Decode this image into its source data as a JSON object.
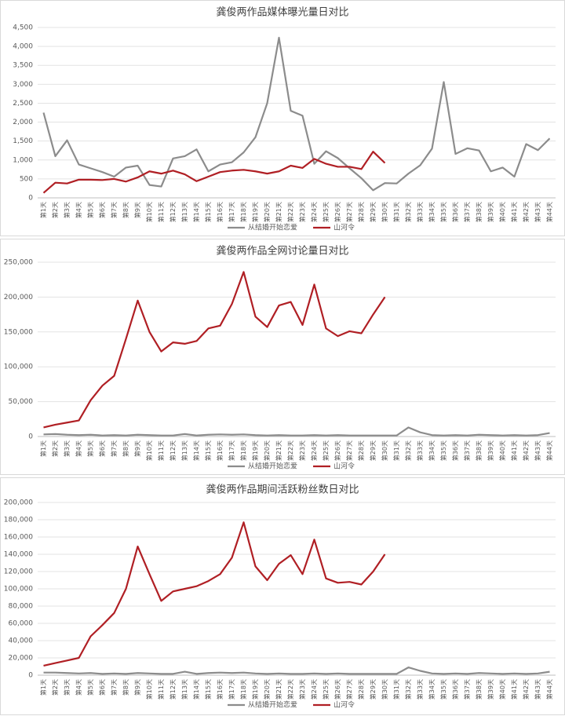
{
  "chart_data": [
    {
      "type": "line",
      "title": "龚俊两作品媒体曝光量日对比",
      "categories": [
        "第1天",
        "第2天",
        "第3天",
        "第4天",
        "第5天",
        "第6天",
        "第7天",
        "第8天",
        "第9天",
        "第10天",
        "第11天",
        "第12天",
        "第13天",
        "第14天",
        "第15天",
        "第16天",
        "第17天",
        "第18天",
        "第19天",
        "第20天",
        "第21天",
        "第22天",
        "第23天",
        "第24天",
        "第25天",
        "第26天",
        "第27天",
        "第28天",
        "第29天",
        "第30天",
        "第31天",
        "第32天",
        "第33天",
        "第34天",
        "第35天",
        "第36天",
        "第37天",
        "第38天",
        "第39天",
        "第40天",
        "第41天",
        "第42天",
        "第43天",
        "第44天"
      ],
      "series": [
        {
          "name": "从结婚开始恋爱",
          "color": "#8c8c8c",
          "values": [
            2250,
            1100,
            1520,
            880,
            780,
            680,
            560,
            800,
            850,
            340,
            300,
            1040,
            1100,
            1280,
            700,
            880,
            940,
            1200,
            1600,
            2500,
            4230,
            2300,
            2170,
            900,
            1230,
            1050,
            780,
            520,
            200,
            390,
            380,
            640,
            860,
            1300,
            3060,
            1160,
            1310,
            1250,
            700,
            800,
            560,
            1420,
            1260,
            1570
          ]
        },
        {
          "name": "山河令",
          "color": "#b01f24",
          "values": [
            130,
            400,
            380,
            480,
            480,
            470,
            500,
            430,
            540,
            700,
            640,
            720,
            620,
            440,
            560,
            680,
            720,
            740,
            700,
            640,
            700,
            850,
            790,
            1030,
            900,
            820,
            820,
            760,
            1220,
            920,
            null,
            null,
            null,
            null,
            null,
            null,
            null,
            null,
            null,
            null,
            null,
            null,
            null,
            null
          ]
        }
      ],
      "ylim": [
        0,
        4500
      ],
      "yticks": [
        0,
        500,
        {
          "value": 1000,
          "label": "1,000"
        },
        {
          "value": 1500,
          "label": "1,500"
        },
        {
          "value": 2000,
          "label": "2,000"
        },
        {
          "value": 2500,
          "label": "2,500"
        },
        {
          "value": 3000,
          "label": "3,000"
        },
        {
          "value": 3500,
          "label": "3,500"
        },
        {
          "value": 4000,
          "label": "4,000"
        },
        {
          "value": 4500,
          "label": "4,500"
        }
      ],
      "grid": true,
      "legend": "bottom"
    },
    {
      "type": "line",
      "title": "龚俊两作品全网讨论量日对比",
      "categories": [
        "第1天",
        "第2天",
        "第3天",
        "第4天",
        "第5天",
        "第6天",
        "第7天",
        "第8天",
        "第9天",
        "第10天",
        "第11天",
        "第12天",
        "第13天",
        "第14天",
        "第15天",
        "第16天",
        "第17天",
        "第18天",
        "第19天",
        "第20天",
        "第21天",
        "第22天",
        "第23天",
        "第24天",
        "第25天",
        "第26天",
        "第27天",
        "第28天",
        "第29天",
        "第30天",
        "第31天",
        "第32天",
        "第33天",
        "第34天",
        "第35天",
        "第36天",
        "第37天",
        "第38天",
        "第39天",
        "第40天",
        "第41天",
        "第42天",
        "第43天",
        "第44天"
      ],
      "series": [
        {
          "name": "从结婚开始恋爱",
          "color": "#8c8c8c",
          "values": [
            3000,
            3500,
            2500,
            2000,
            2500,
            1500,
            2000,
            1500,
            2500,
            2000,
            1500,
            1500,
            3500,
            1500,
            2500,
            3000,
            2500,
            3000,
            2000,
            1500,
            2000,
            1500,
            1500,
            2000,
            1500,
            2000,
            1500,
            1500,
            1500,
            1500,
            1500,
            13000,
            6000,
            2000,
            1500,
            2000,
            1500,
            2500,
            2000,
            1500,
            2000,
            1500,
            2000,
            5000
          ]
        },
        {
          "name": "山河令",
          "color": "#b01f24",
          "values": [
            13000,
            17000,
            20000,
            23000,
            52000,
            73000,
            87000,
            140000,
            195000,
            150000,
            122000,
            135000,
            133000,
            137000,
            155000,
            159000,
            190000,
            236000,
            172000,
            157000,
            188000,
            193000,
            160000,
            218000,
            155000,
            144000,
            151000,
            148000,
            175000,
            200000,
            null,
            null,
            null,
            null,
            null,
            null,
            null,
            null,
            null,
            null,
            null,
            null,
            null,
            null
          ]
        }
      ],
      "ylim": [
        0,
        250000
      ],
      "yticks": [
        0,
        {
          "value": 50000,
          "label": "50,000"
        },
        {
          "value": 100000,
          "label": "100,000"
        },
        {
          "value": 150000,
          "label": "150,000"
        },
        {
          "value": 200000,
          "label": "200,000"
        },
        {
          "value": 250000,
          "label": "250,000"
        }
      ],
      "grid": true,
      "legend": "bottom"
    },
    {
      "type": "line",
      "title": "龚俊两作品期间活跃粉丝数日对比",
      "categories": [
        "第1天",
        "第2天",
        "第3天",
        "第4天",
        "第5天",
        "第6天",
        "第7天",
        "第8天",
        "第9天",
        "第10天",
        "第11天",
        "第12天",
        "第13天",
        "第14天",
        "第15天",
        "第16天",
        "第17天",
        "第18天",
        "第19天",
        "第20天",
        "第21天",
        "第22天",
        "第23天",
        "第24天",
        "第25天",
        "第26天",
        "第27天",
        "第28天",
        "第29天",
        "第30天",
        "第31天",
        "第32天",
        "第33天",
        "第34天",
        "第35天",
        "第36天",
        "第37天",
        "第38天",
        "第39天",
        "第40天",
        "第41天",
        "第42天",
        "第43天",
        "第44天"
      ],
      "series": [
        {
          "name": "从结婚开始恋爱",
          "color": "#8c8c8c",
          "values": [
            3000,
            3000,
            2500,
            2000,
            2500,
            1500,
            2000,
            1500,
            2500,
            2000,
            1500,
            1500,
            4000,
            1500,
            2500,
            3000,
            2500,
            3000,
            2000,
            1500,
            2000,
            1500,
            1500,
            2000,
            1500,
            2000,
            1500,
            1500,
            1500,
            1500,
            1500,
            9000,
            5000,
            2000,
            1500,
            2000,
            1500,
            2500,
            2000,
            1500,
            2000,
            1500,
            2000,
            4000
          ]
        },
        {
          "name": "山河令",
          "color": "#b01f24",
          "values": [
            11000,
            14000,
            17000,
            20000,
            45000,
            58000,
            72000,
            100000,
            149000,
            117000,
            86000,
            97000,
            100000,
            103000,
            109000,
            117000,
            136000,
            177000,
            126000,
            110000,
            129000,
            139000,
            117000,
            157000,
            112000,
            107000,
            108000,
            105000,
            120000,
            140000,
            null,
            null,
            null,
            null,
            null,
            null,
            null,
            null,
            null,
            null,
            null,
            null,
            null,
            null
          ]
        }
      ],
      "ylim": [
        0,
        200000
      ],
      "yticks": [
        0,
        {
          "value": 20000,
          "label": "20,000"
        },
        {
          "value": 40000,
          "label": "40,000"
        },
        {
          "value": 60000,
          "label": "60,000"
        },
        {
          "value": 80000,
          "label": "80,000"
        },
        {
          "value": 100000,
          "label": "100,000"
        },
        {
          "value": 120000,
          "label": "120,000"
        },
        {
          "value": 140000,
          "label": "140,000"
        },
        {
          "value": 160000,
          "label": "160,000"
        },
        {
          "value": 180000,
          "label": "180,000"
        },
        {
          "value": 200000,
          "label": "200,000"
        }
      ],
      "grid": true,
      "legend": "bottom"
    }
  ]
}
